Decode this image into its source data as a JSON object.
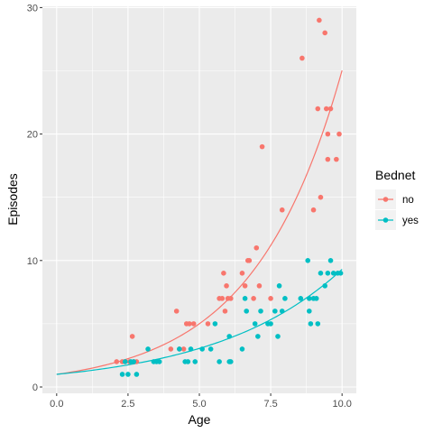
{
  "chart_data": {
    "type": "scatter",
    "xlabel": "Age",
    "ylabel": "Episodes",
    "xlim": [
      -0.5,
      10.5
    ],
    "ylim": [
      -0.5,
      30.1
    ],
    "x_ticks": [
      0,
      2.5,
      5,
      7.5,
      10
    ],
    "x_tick_labels": [
      "0.0",
      "2.5",
      "5.0",
      "7.5",
      "10.0"
    ],
    "y_ticks": [
      0,
      10,
      20,
      30
    ],
    "y_tick_labels": [
      "0",
      "10",
      "20",
      "30"
    ],
    "grid": true,
    "legend": {
      "title": "Bednet",
      "position": "right"
    },
    "series": [
      {
        "name": "no",
        "color": "#F8766D",
        "points": [
          [
            2.1,
            2
          ],
          [
            2.3,
            2
          ],
          [
            2.4,
            2
          ],
          [
            2.55,
            2
          ],
          [
            2.65,
            4
          ],
          [
            2.7,
            2
          ],
          [
            2.8,
            2
          ],
          [
            4.0,
            3
          ],
          [
            4.2,
            6
          ],
          [
            4.3,
            3
          ],
          [
            4.45,
            3
          ],
          [
            4.55,
            5
          ],
          [
            4.65,
            5
          ],
          [
            4.8,
            5
          ],
          [
            5.3,
            5
          ],
          [
            5.7,
            7
          ],
          [
            5.8,
            7
          ],
          [
            5.85,
            9
          ],
          [
            5.9,
            6
          ],
          [
            5.95,
            8
          ],
          [
            6.0,
            7
          ],
          [
            6.1,
            7
          ],
          [
            6.5,
            9
          ],
          [
            6.6,
            8
          ],
          [
            6.7,
            10
          ],
          [
            6.75,
            10
          ],
          [
            6.9,
            7
          ],
          [
            7.0,
            11
          ],
          [
            7.1,
            8
          ],
          [
            7.2,
            19
          ],
          [
            7.5,
            7
          ],
          [
            7.9,
            14
          ],
          [
            8.6,
            26
          ],
          [
            9.0,
            14
          ],
          [
            9.15,
            22
          ],
          [
            9.2,
            29
          ],
          [
            9.25,
            15
          ],
          [
            9.4,
            28
          ],
          [
            9.45,
            22
          ],
          [
            9.5,
            20
          ],
          [
            9.5,
            18
          ],
          [
            9.6,
            22
          ],
          [
            9.8,
            18
          ],
          [
            9.9,
            20
          ]
        ]
      },
      {
        "name": "yes",
        "color": "#00BFC4",
        "points": [
          [
            2.3,
            1
          ],
          [
            2.4,
            2
          ],
          [
            2.5,
            1
          ],
          [
            2.6,
            2
          ],
          [
            2.7,
            2
          ],
          [
            2.8,
            1
          ],
          [
            3.2,
            3
          ],
          [
            3.4,
            2
          ],
          [
            3.5,
            2
          ],
          [
            3.6,
            2
          ],
          [
            4.3,
            3
          ],
          [
            4.5,
            2
          ],
          [
            4.6,
            2
          ],
          [
            4.7,
            3
          ],
          [
            4.85,
            2
          ],
          [
            5.1,
            3
          ],
          [
            5.4,
            3
          ],
          [
            5.55,
            5
          ],
          [
            5.7,
            2
          ],
          [
            6.05,
            2
          ],
          [
            6.05,
            4
          ],
          [
            6.1,
            2
          ],
          [
            6.5,
            3
          ],
          [
            6.6,
            7
          ],
          [
            6.65,
            6
          ],
          [
            6.95,
            5
          ],
          [
            7.05,
            4
          ],
          [
            7.15,
            6
          ],
          [
            7.4,
            5
          ],
          [
            7.5,
            5
          ],
          [
            7.65,
            6
          ],
          [
            7.75,
            4
          ],
          [
            7.8,
            8
          ],
          [
            7.9,
            6
          ],
          [
            8.0,
            7
          ],
          [
            8.55,
            7
          ],
          [
            8.8,
            10
          ],
          [
            8.85,
            6
          ],
          [
            8.85,
            7
          ],
          [
            8.9,
            5
          ],
          [
            9.0,
            7
          ],
          [
            9.1,
            7
          ],
          [
            9.15,
            5
          ],
          [
            9.25,
            9
          ],
          [
            9.4,
            8
          ],
          [
            9.5,
            9
          ],
          [
            9.6,
            10
          ],
          [
            9.7,
            9
          ],
          [
            9.85,
            9
          ],
          [
            9.95,
            9
          ]
        ]
      }
    ],
    "fits": [
      {
        "name": "no",
        "color": "#F8766D",
        "y0": 1.0,
        "rate": 0.322
      },
      {
        "name": "yes",
        "color": "#00BFC4",
        "y0": 1.0,
        "rate": 0.223
      }
    ]
  }
}
